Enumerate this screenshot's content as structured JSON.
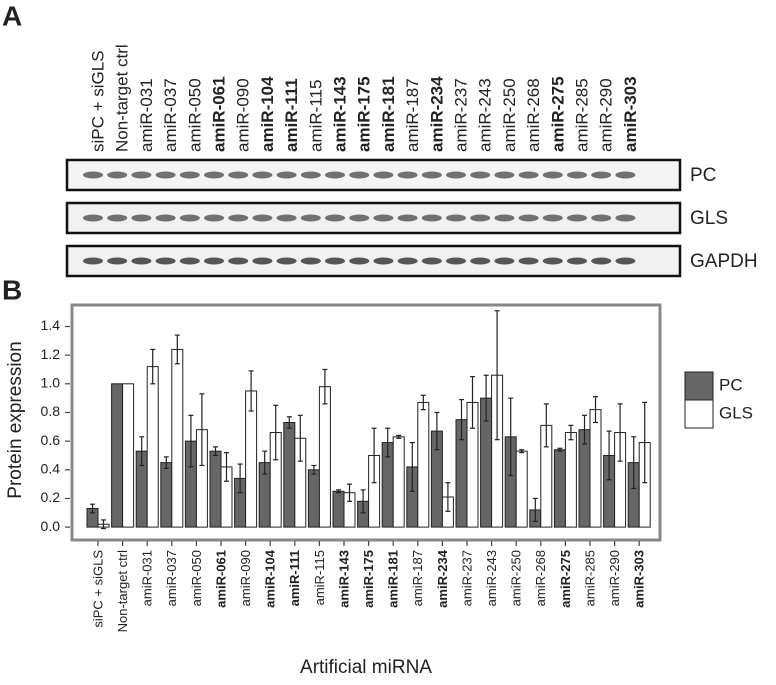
{
  "chart_data": {
    "type": "bar",
    "panel_labels": [
      "A",
      "B"
    ],
    "blot_labels": [
      "PC",
      "GLS",
      "GAPDH"
    ],
    "y_label": "Protein expression",
    "x_label": "Artificial miRNA",
    "categories": [
      "siPC + siGLS",
      "Non-target ctrl",
      "amiR-031",
      "amiR-037",
      "amiR-050",
      "amiR-061",
      "amiR-090",
      "amiR-104",
      "amiR-111",
      "amiR-115",
      "amiR-143",
      "amiR-175",
      "amiR-181",
      "amiR-187",
      "amiR-234",
      "amiR-237",
      "amiR-243",
      "amiR-250",
      "amiR-268",
      "amiR-275",
      "amiR-285",
      "amiR-290",
      "amiR-303"
    ],
    "bold": [
      false,
      false,
      false,
      false,
      false,
      true,
      false,
      true,
      true,
      false,
      true,
      true,
      true,
      false,
      true,
      false,
      false,
      false,
      false,
      true,
      false,
      false,
      true
    ],
    "series": [
      {
        "name": "PC",
        "color": "#666666",
        "values": [
          0.13,
          1.0,
          0.53,
          0.45,
          0.6,
          0.53,
          0.34,
          0.45,
          0.73,
          0.4,
          0.25,
          0.18,
          0.59,
          0.42,
          0.67,
          0.75,
          0.9,
          0.63,
          0.12,
          0.54,
          0.68,
          0.5,
          0.45
        ],
        "errors": [
          0.03,
          0,
          0.1,
          0.04,
          0.18,
          0.03,
          0.1,
          0.08,
          0.04,
          0.03,
          0.01,
          0.08,
          0.1,
          0.17,
          0.13,
          0.14,
          0.16,
          0.27,
          0.08,
          0.01,
          0.1,
          0.17,
          0.18
        ]
      },
      {
        "name": "GLS",
        "color": "#ffffff",
        "values": [
          0.02,
          1.0,
          1.12,
          1.24,
          0.68,
          0.42,
          0.95,
          0.66,
          0.62,
          0.98,
          0.24,
          0.5,
          0.63,
          0.87,
          0.21,
          0.87,
          1.06,
          0.53,
          0.71,
          0.66,
          0.82,
          0.66,
          0.59
        ],
        "errors": [
          0.03,
          0,
          0.12,
          0.1,
          0.25,
          0.1,
          0.14,
          0.19,
          0.16,
          0.12,
          0.06,
          0.19,
          0.01,
          0.05,
          0.1,
          0.18,
          0.45,
          0.01,
          0.15,
          0.05,
          0.09,
          0.2,
          0.28
        ]
      }
    ],
    "ylim": [
      -0.09,
      1.55
    ],
    "yticks": [
      {
        "value": 0,
        "label": "0.0"
      },
      0.2,
      0.4,
      0.6,
      0.8,
      {
        "value": 1,
        "label": "1.0"
      },
      1.2,
      1.4
    ]
  }
}
